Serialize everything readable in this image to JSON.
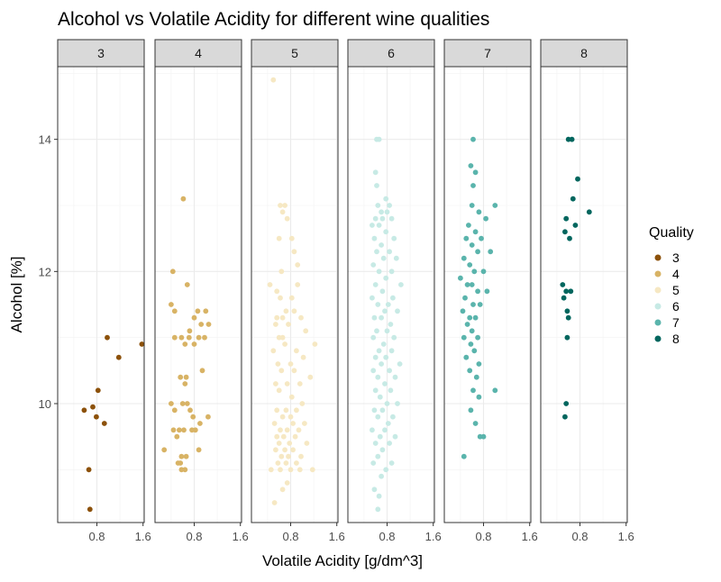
{
  "chart_data": {
    "type": "scatter",
    "title": "Alcohol vs Volatile Acidity for different wine qualities",
    "xlabel": "Volatile Acidity [g/dm^3]",
    "ylabel": "Alcohol [%]",
    "xlim": [
      0.12,
      1.62
    ],
    "ylim": [
      8.2,
      15.1
    ],
    "x_ticks": [
      0.8,
      1.6
    ],
    "x_tick_labels": [
      "0.8",
      "1.6"
    ],
    "y_ticks": [
      10,
      12,
      14
    ],
    "y_tick_labels": [
      "10",
      "12",
      "14"
    ],
    "grid": true,
    "legend": {
      "title": "Quality",
      "position": "right"
    },
    "facet_labels": [
      "3",
      "4",
      "5",
      "6",
      "7",
      "8"
    ],
    "colors": {
      "3": "#8C510A",
      "4": "#D8B365",
      "5": "#F6E8C3",
      "6": "#C7EAE5",
      "7": "#5AB4AC",
      "8": "#01665E"
    },
    "series": [
      {
        "name": "3",
        "points": [
          [
            0.58,
            9.9
          ],
          [
            0.98,
            11.0
          ],
          [
            1.18,
            10.7
          ],
          [
            1.58,
            10.9
          ],
          [
            0.82,
            10.2
          ],
          [
            0.73,
            9.95
          ],
          [
            0.79,
            9.8
          ],
          [
            0.93,
            9.7
          ],
          [
            0.66,
            9.0
          ],
          [
            0.68,
            8.4
          ]
        ]
      },
      {
        "name": "4",
        "points": [
          [
            0.61,
            13.1
          ],
          [
            0.43,
            12.0
          ],
          [
            0.68,
            11.8
          ],
          [
            0.4,
            11.5
          ],
          [
            0.46,
            11.4
          ],
          [
            0.86,
            11.4
          ],
          [
            1.0,
            11.4
          ],
          [
            0.8,
            11.3
          ],
          [
            0.92,
            11.2
          ],
          [
            1.05,
            11.2
          ],
          [
            0.72,
            11.1
          ],
          [
            0.46,
            11.0
          ],
          [
            0.58,
            11.0
          ],
          [
            0.71,
            11.0
          ],
          [
            0.88,
            11.0
          ],
          [
            0.98,
            11.0
          ],
          [
            0.64,
            10.9
          ],
          [
            0.8,
            10.9
          ],
          [
            0.94,
            10.5
          ],
          [
            0.56,
            10.4
          ],
          [
            0.66,
            10.4
          ],
          [
            0.64,
            10.3
          ],
          [
            0.4,
            10.0
          ],
          [
            0.6,
            10.0
          ],
          [
            0.68,
            10.0
          ],
          [
            0.46,
            9.9
          ],
          [
            0.73,
            9.9
          ],
          [
            0.78,
            9.8
          ],
          [
            1.04,
            9.8
          ],
          [
            0.9,
            9.7
          ],
          [
            0.44,
            9.6
          ],
          [
            0.54,
            9.6
          ],
          [
            0.62,
            9.6
          ],
          [
            0.76,
            9.6
          ],
          [
            0.82,
            9.6
          ],
          [
            0.5,
            9.5
          ],
          [
            0.88,
            9.3
          ],
          [
            0.28,
            9.3
          ],
          [
            0.58,
            9.2
          ],
          [
            0.66,
            9.2
          ],
          [
            0.52,
            9.1
          ],
          [
            0.56,
            9.1
          ],
          [
            0.58,
            9.0
          ],
          [
            0.64,
            9.0
          ]
        ]
      },
      {
        "name": "5",
        "points": [
          [
            0.5,
            14.9
          ],
          [
            0.62,
            13.0
          ],
          [
            0.7,
            13.0
          ],
          [
            0.66,
            12.9
          ],
          [
            0.74,
            12.8
          ],
          [
            0.6,
            12.5
          ],
          [
            0.82,
            12.5
          ],
          [
            0.86,
            12.3
          ],
          [
            0.92,
            12.1
          ],
          [
            0.64,
            12.0
          ],
          [
            0.44,
            11.8
          ],
          [
            0.92,
            11.8
          ],
          [
            0.56,
            11.7
          ],
          [
            0.62,
            11.6
          ],
          [
            0.82,
            11.6
          ],
          [
            0.72,
            11.4
          ],
          [
            0.86,
            11.4
          ],
          [
            0.56,
            11.3
          ],
          [
            0.66,
            11.3
          ],
          [
            0.98,
            11.3
          ],
          [
            0.54,
            11.2
          ],
          [
            0.76,
            11.2
          ],
          [
            1.06,
            11.1
          ],
          [
            0.6,
            11.0
          ],
          [
            0.66,
            11.0
          ],
          [
            0.7,
            10.9
          ],
          [
            1.22,
            10.9
          ],
          [
            0.5,
            10.8
          ],
          [
            0.9,
            10.8
          ],
          [
            1.02,
            10.7
          ],
          [
            0.58,
            10.6
          ],
          [
            0.8,
            10.6
          ],
          [
            0.64,
            10.5
          ],
          [
            0.86,
            10.5
          ],
          [
            1.14,
            10.4
          ],
          [
            0.54,
            10.3
          ],
          [
            0.74,
            10.3
          ],
          [
            0.96,
            10.3
          ],
          [
            0.6,
            10.2
          ],
          [
            0.82,
            10.1
          ],
          [
            1.0,
            10.0
          ],
          [
            0.56,
            9.9
          ],
          [
            0.72,
            9.9
          ],
          [
            0.9,
            9.9
          ],
          [
            0.66,
            9.8
          ],
          [
            0.8,
            9.8
          ],
          [
            0.52,
            9.7
          ],
          [
            0.84,
            9.7
          ],
          [
            1.04,
            9.7
          ],
          [
            0.62,
            9.6
          ],
          [
            0.74,
            9.6
          ],
          [
            0.94,
            9.6
          ],
          [
            0.56,
            9.5
          ],
          [
            0.68,
            9.5
          ],
          [
            0.88,
            9.5
          ],
          [
            0.6,
            9.4
          ],
          [
            0.78,
            9.4
          ],
          [
            1.08,
            9.4
          ],
          [
            0.54,
            9.3
          ],
          [
            0.7,
            9.3
          ],
          [
            0.84,
            9.3
          ],
          [
            0.64,
            9.2
          ],
          [
            0.76,
            9.2
          ],
          [
            0.98,
            9.2
          ],
          [
            0.58,
            9.1
          ],
          [
            0.72,
            9.1
          ],
          [
            0.9,
            9.1
          ],
          [
            0.62,
            9.0
          ],
          [
            0.8,
            9.0
          ],
          [
            0.96,
            9.0
          ],
          [
            0.46,
            9.0
          ],
          [
            1.18,
            9.0
          ],
          [
            0.74,
            8.8
          ],
          [
            0.66,
            8.7
          ],
          [
            0.52,
            8.5
          ]
        ]
      },
      {
        "name": "6",
        "points": [
          [
            0.62,
            14.0
          ],
          [
            0.66,
            14.0
          ],
          [
            0.6,
            13.5
          ],
          [
            0.62,
            13.3
          ],
          [
            0.78,
            13.1
          ],
          [
            0.64,
            13.0
          ],
          [
            0.84,
            13.0
          ],
          [
            0.7,
            12.9
          ],
          [
            0.8,
            12.9
          ],
          [
            0.6,
            12.8
          ],
          [
            0.72,
            12.8
          ],
          [
            0.88,
            12.8
          ],
          [
            0.54,
            12.7
          ],
          [
            0.66,
            12.7
          ],
          [
            0.78,
            12.6
          ],
          [
            0.92,
            12.5
          ],
          [
            0.58,
            12.5
          ],
          [
            0.7,
            12.4
          ],
          [
            0.84,
            12.3
          ],
          [
            0.62,
            12.3
          ],
          [
            0.96,
            12.2
          ],
          [
            0.74,
            12.2
          ],
          [
            0.56,
            12.1
          ],
          [
            0.88,
            12.0
          ],
          [
            0.66,
            12.0
          ],
          [
            0.78,
            11.9
          ],
          [
            1.04,
            11.8
          ],
          [
            0.6,
            11.8
          ],
          [
            0.72,
            11.7
          ],
          [
            0.9,
            11.6
          ],
          [
            0.54,
            11.6
          ],
          [
            0.82,
            11.5
          ],
          [
            0.64,
            11.5
          ],
          [
            0.76,
            11.4
          ],
          [
            0.98,
            11.4
          ],
          [
            0.58,
            11.3
          ],
          [
            0.7,
            11.3
          ],
          [
            0.86,
            11.2
          ],
          [
            0.62,
            11.1
          ],
          [
            0.8,
            11.1
          ],
          [
            0.92,
            11.0
          ],
          [
            0.56,
            11.0
          ],
          [
            0.74,
            10.9
          ],
          [
            0.66,
            10.8
          ],
          [
            0.88,
            10.8
          ],
          [
            0.6,
            10.7
          ],
          [
            0.78,
            10.7
          ],
          [
            1.02,
            10.6
          ],
          [
            0.7,
            10.6
          ],
          [
            0.84,
            10.5
          ],
          [
            0.56,
            10.5
          ],
          [
            0.64,
            10.4
          ],
          [
            0.94,
            10.4
          ],
          [
            0.76,
            10.3
          ],
          [
            0.6,
            10.2
          ],
          [
            0.86,
            10.2
          ],
          [
            0.68,
            10.1
          ],
          [
            0.8,
            10.0
          ],
          [
            0.98,
            10.0
          ],
          [
            0.58,
            9.9
          ],
          [
            0.72,
            9.9
          ],
          [
            0.9,
            9.8
          ],
          [
            0.64,
            9.8
          ],
          [
            0.82,
            9.7
          ],
          [
            0.54,
            9.6
          ],
          [
            0.76,
            9.6
          ],
          [
            0.68,
            9.5
          ],
          [
            0.94,
            9.5
          ],
          [
            0.6,
            9.4
          ],
          [
            0.84,
            9.4
          ],
          [
            0.72,
            9.3
          ],
          [
            0.64,
            9.2
          ],
          [
            0.88,
            9.1
          ],
          [
            0.56,
            9.1
          ],
          [
            0.78,
            9.0
          ],
          [
            0.7,
            8.9
          ],
          [
            0.58,
            8.7
          ],
          [
            0.66,
            8.6
          ],
          [
            0.64,
            8.4
          ]
        ]
      },
      {
        "name": "7",
        "points": [
          [
            0.62,
            14.0
          ],
          [
            0.58,
            13.6
          ],
          [
            0.66,
            13.5
          ],
          [
            0.62,
            13.3
          ],
          [
            0.6,
            13.0
          ],
          [
            1.0,
            13.0
          ],
          [
            0.72,
            12.9
          ],
          [
            0.84,
            12.8
          ],
          [
            0.54,
            12.7
          ],
          [
            0.66,
            12.6
          ],
          [
            0.76,
            12.5
          ],
          [
            0.5,
            12.5
          ],
          [
            0.6,
            12.4
          ],
          [
            0.7,
            12.3
          ],
          [
            0.92,
            12.3
          ],
          [
            0.46,
            12.2
          ],
          [
            0.56,
            12.1
          ],
          [
            0.64,
            12.0
          ],
          [
            0.8,
            12.0
          ],
          [
            0.4,
            11.9
          ],
          [
            0.52,
            11.8
          ],
          [
            0.6,
            11.8
          ],
          [
            0.7,
            11.7
          ],
          [
            0.86,
            11.7
          ],
          [
            0.48,
            11.6
          ],
          [
            0.62,
            11.5
          ],
          [
            0.74,
            11.5
          ],
          [
            0.44,
            11.4
          ],
          [
            0.56,
            11.3
          ],
          [
            0.66,
            11.3
          ],
          [
            0.52,
            11.2
          ],
          [
            0.6,
            11.1
          ],
          [
            0.7,
            11.0
          ],
          [
            0.46,
            11.0
          ],
          [
            0.58,
            10.9
          ],
          [
            0.64,
            10.8
          ],
          [
            0.5,
            10.7
          ],
          [
            0.72,
            10.6
          ],
          [
            0.56,
            10.5
          ],
          [
            0.68,
            10.4
          ],
          [
            0.62,
            10.2
          ],
          [
            1.0,
            10.2
          ],
          [
            0.72,
            10.1
          ],
          [
            0.58,
            9.9
          ],
          [
            0.66,
            9.7
          ],
          [
            0.74,
            9.5
          ],
          [
            0.8,
            9.5
          ],
          [
            0.46,
            9.2
          ]
        ]
      },
      {
        "name": "8",
        "points": [
          [
            0.6,
            14.0
          ],
          [
            0.66,
            14.0
          ],
          [
            0.76,
            13.4
          ],
          [
            0.68,
            13.1
          ],
          [
            0.56,
            12.8
          ],
          [
            0.96,
            12.9
          ],
          [
            0.72,
            12.7
          ],
          [
            0.54,
            12.6
          ],
          [
            0.62,
            12.5
          ],
          [
            0.5,
            11.8
          ],
          [
            0.56,
            11.7
          ],
          [
            0.64,
            11.7
          ],
          [
            0.52,
            11.6
          ],
          [
            0.58,
            11.4
          ],
          [
            0.6,
            11.3
          ],
          [
            0.58,
            11.0
          ],
          [
            0.56,
            10.0
          ],
          [
            0.54,
            9.8
          ]
        ]
      }
    ]
  }
}
